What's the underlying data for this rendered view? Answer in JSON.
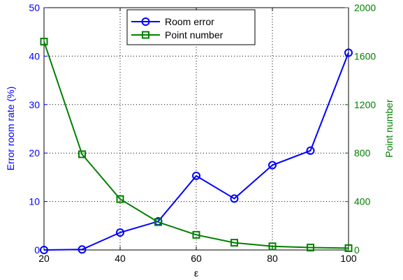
{
  "chart_data": {
    "type": "line",
    "xlabel": "ε",
    "x_ticks": [
      "20",
      "40",
      "60",
      "80",
      "100"
    ],
    "xlim": [
      20,
      100
    ],
    "grid": true,
    "legend_placement": "top-center",
    "axes": {
      "left": {
        "label": "Error room rate (%)",
        "ylim": [
          0,
          50
        ],
        "ticks": [
          "0",
          "10",
          "20",
          "30",
          "40",
          "50"
        ],
        "color": "#0000ff"
      },
      "right": {
        "label": "Point number",
        "ylim": [
          0,
          2000
        ],
        "ticks": [
          "0",
          "400",
          "800",
          "1200",
          "1600",
          "2000"
        ],
        "color": "#008000"
      }
    },
    "x": [
      20,
      30,
      40,
      50,
      60,
      70,
      80,
      90,
      100
    ],
    "series": [
      {
        "name": "Room error",
        "axis": "left",
        "marker": "circle",
        "color": "#0000ff",
        "values": [
          0,
          0.1,
          3.6,
          5.9,
          15.3,
          10.6,
          17.5,
          20.5,
          40.7
        ]
      },
      {
        "name": "Point number",
        "axis": "right",
        "marker": "square",
        "color": "#008000",
        "values": [
          1720,
          790,
          420,
          230,
          125,
          60,
          30,
          20,
          15
        ]
      }
    ]
  }
}
